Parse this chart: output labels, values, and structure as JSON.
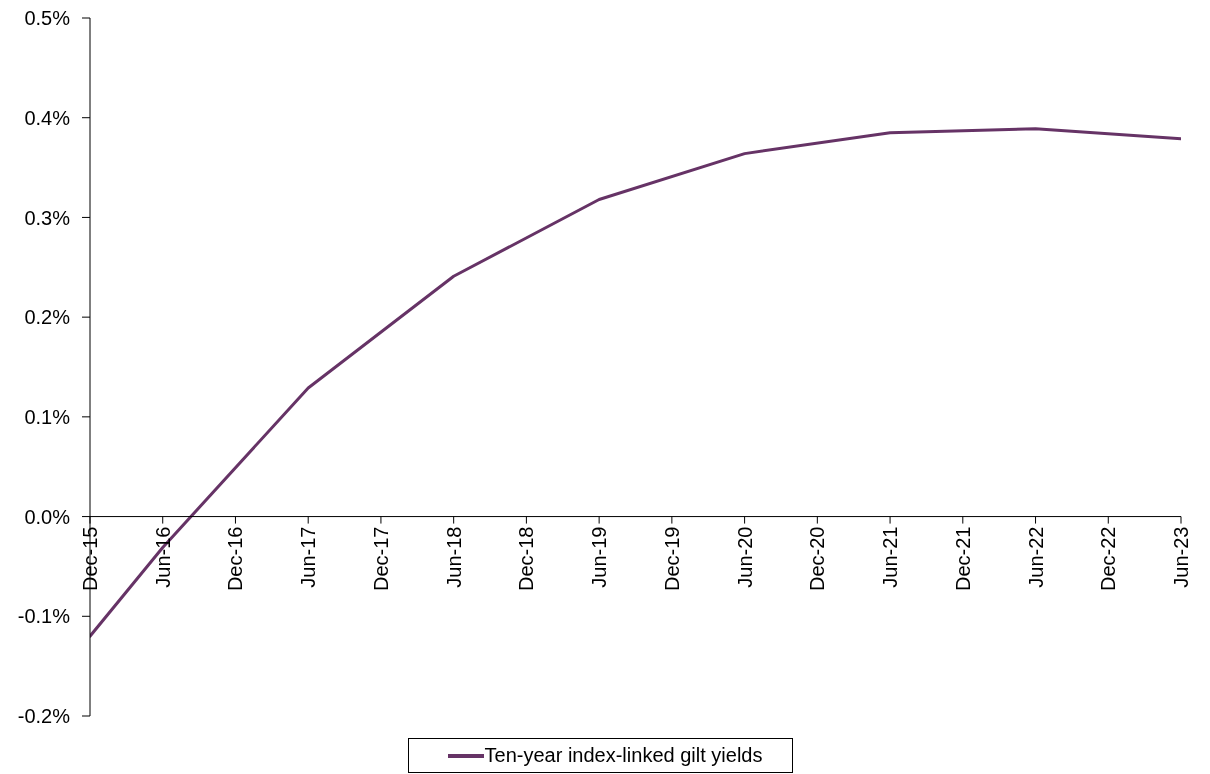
{
  "chart_data": {
    "type": "line",
    "x": [
      "2015-12",
      "2016-06",
      "2017-06",
      "2018-06",
      "2019-06",
      "2020-06",
      "2021-06",
      "2022-06",
      "2023-06"
    ],
    "series": [
      {
        "name": "Ten-year index-linked gilt yields",
        "color": "#663366",
        "values": [
          -0.12,
          -0.031,
          0.129,
          0.241,
          0.318,
          0.364,
          0.385,
          0.389,
          0.379
        ]
      }
    ],
    "xlim": [
      "2015-12",
      "2023-06"
    ],
    "xticks": [
      {
        "value": "2015-12",
        "label": "Dec-15"
      },
      {
        "value": "2016-06",
        "label": "Jun-16"
      },
      {
        "value": "2016-12",
        "label": "Dec-16"
      },
      {
        "value": "2017-06",
        "label": "Jun-17"
      },
      {
        "value": "2017-12",
        "label": "Dec-17"
      },
      {
        "value": "2018-06",
        "label": "Jun-18"
      },
      {
        "value": "2018-12",
        "label": "Dec-18"
      },
      {
        "value": "2019-06",
        "label": "Jun-19"
      },
      {
        "value": "2019-12",
        "label": "Dec-19"
      },
      {
        "value": "2020-06",
        "label": "Jun-20"
      },
      {
        "value": "2020-12",
        "label": "Dec-20"
      },
      {
        "value": "2021-06",
        "label": "Jun-21"
      },
      {
        "value": "2021-12",
        "label": "Dec-21"
      },
      {
        "value": "2022-06",
        "label": "Jun-22"
      },
      {
        "value": "2022-12",
        "label": "Dec-22"
      },
      {
        "value": "2023-06",
        "label": "Jun-23"
      }
    ],
    "ylim": [
      -0.2,
      0.5
    ],
    "yticks": [
      {
        "value": -0.2,
        "label": "-0.2%"
      },
      {
        "value": -0.1,
        "label": "-0.1%"
      },
      {
        "value": 0,
        "label": "0.0%"
      },
      {
        "value": 0.1,
        "label": "0.1%"
      },
      {
        "value": 0.2,
        "label": "0.2%"
      },
      {
        "value": 0.3,
        "label": "0.3%"
      },
      {
        "value": 0.4,
        "label": "0.4%"
      },
      {
        "value": 0.5,
        "label": "0.5%"
      }
    ],
    "legend": "bottom",
    "marker": "none",
    "line_style": "solid"
  }
}
